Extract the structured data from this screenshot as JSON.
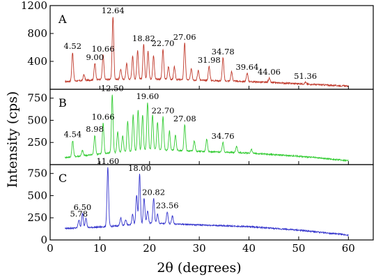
{
  "chart_data": {
    "type": "line",
    "xlabel": "2θ (degrees)",
    "ylabel": "Intensity (cps)",
    "x_range": [
      0,
      65
    ],
    "x_ticks": [
      0,
      10,
      20,
      30,
      40,
      50,
      60
    ],
    "grid": false,
    "panels": [
      {
        "id": "A",
        "letter": "A",
        "ylim": [
          0,
          1200
        ],
        "y_ticks": [
          400,
          800,
          1200
        ],
        "color": "#c0392b",
        "baseline": [
          [
            3,
            110
          ],
          [
            10,
            140
          ],
          [
            20,
            150
          ],
          [
            30,
            130
          ],
          [
            40,
            110
          ],
          [
            50,
            80
          ],
          [
            60,
            45
          ]
        ],
        "peaks": [
          {
            "x": 4.52,
            "y": 530,
            "label": "4.52"
          },
          {
            "x": 6.8,
            "y": 210
          },
          {
            "x": 9.0,
            "y": 370,
            "label": "9.00"
          },
          {
            "x": 10.66,
            "y": 490,
            "label": "10.66"
          },
          {
            "x": 12.64,
            "y": 1040,
            "label": "12.64"
          },
          {
            "x": 14.2,
            "y": 290
          },
          {
            "x": 15.4,
            "y": 370
          },
          {
            "x": 16.6,
            "y": 470
          },
          {
            "x": 17.6,
            "y": 560
          },
          {
            "x": 18.82,
            "y": 640,
            "label": "18.82"
          },
          {
            "x": 19.7,
            "y": 540
          },
          {
            "x": 20.8,
            "y": 480
          },
          {
            "x": 22.7,
            "y": 570,
            "label": "22.70"
          },
          {
            "x": 23.8,
            "y": 330
          },
          {
            "x": 25.0,
            "y": 320
          },
          {
            "x": 27.06,
            "y": 660,
            "label": "27.06"
          },
          {
            "x": 28.4,
            "y": 300
          },
          {
            "x": 29.8,
            "y": 270
          },
          {
            "x": 31.98,
            "y": 330,
            "label": "31.98"
          },
          {
            "x": 34.78,
            "y": 450,
            "label": "34.78"
          },
          {
            "x": 36.5,
            "y": 250
          },
          {
            "x": 39.64,
            "y": 230,
            "label": "39.64"
          },
          {
            "x": 44.06,
            "y": 160,
            "label": "44.06"
          },
          {
            "x": 51.36,
            "y": 100,
            "label": "51.36"
          }
        ]
      },
      {
        "id": "B",
        "letter": "B",
        "ylim": [
          0,
          850
        ],
        "y_ticks": [
          250,
          500,
          750
        ],
        "color": "#33cc33",
        "baseline": [
          [
            3,
            80
          ],
          [
            10,
            120
          ],
          [
            20,
            170
          ],
          [
            30,
            150
          ],
          [
            40,
            130
          ],
          [
            50,
            95
          ],
          [
            60,
            45
          ]
        ],
        "peaks": [
          {
            "x": 4.54,
            "y": 270,
            "label": "4.54"
          },
          {
            "x": 6.5,
            "y": 160
          },
          {
            "x": 8.98,
            "y": 330,
            "label": "8.98"
          },
          {
            "x": 10.66,
            "y": 470,
            "label": "10.66"
          },
          {
            "x": 12.5,
            "y": 790,
            "label": "12.50"
          },
          {
            "x": 13.6,
            "y": 370
          },
          {
            "x": 14.6,
            "y": 330
          },
          {
            "x": 15.6,
            "y": 490
          },
          {
            "x": 16.7,
            "y": 560
          },
          {
            "x": 17.7,
            "y": 610
          },
          {
            "x": 18.6,
            "y": 560
          },
          {
            "x": 19.6,
            "y": 700,
            "label": "19.60"
          },
          {
            "x": 20.6,
            "y": 560
          },
          {
            "x": 21.6,
            "y": 480
          },
          {
            "x": 22.7,
            "y": 540,
            "label": "22.70"
          },
          {
            "x": 24.0,
            "y": 380
          },
          {
            "x": 25.2,
            "y": 330
          },
          {
            "x": 27.08,
            "y": 450,
            "label": "27.08"
          },
          {
            "x": 29.0,
            "y": 270
          },
          {
            "x": 31.5,
            "y": 290
          },
          {
            "x": 34.76,
            "y": 250,
            "label": "34.76"
          },
          {
            "x": 37.5,
            "y": 210
          },
          {
            "x": 40.5,
            "y": 170
          }
        ]
      },
      {
        "id": "C",
        "letter": "C",
        "ylim": [
          0,
          850
        ],
        "y_ticks": [
          0,
          250,
          500,
          750
        ],
        "color": "#3333cc",
        "baseline": [
          [
            3,
            130
          ],
          [
            10,
            145
          ],
          [
            15,
            165
          ],
          [
            20,
            190
          ],
          [
            30,
            170
          ],
          [
            40,
            150
          ],
          [
            50,
            110
          ],
          [
            60,
            55
          ]
        ],
        "peaks": [
          {
            "x": 5.78,
            "y": 225,
            "label": "5.78"
          },
          {
            "x": 6.5,
            "y": 300,
            "label": "6.50"
          },
          {
            "x": 7.2,
            "y": 250
          },
          {
            "x": 11.6,
            "y": 820,
            "label": "11.60"
          },
          {
            "x": 14.2,
            "y": 250
          },
          {
            "x": 15.2,
            "y": 230
          },
          {
            "x": 16.6,
            "y": 290
          },
          {
            "x": 17.4,
            "y": 510
          },
          {
            "x": 18.0,
            "y": 740,
            "label": "18.00"
          },
          {
            "x": 18.9,
            "y": 470
          },
          {
            "x": 19.6,
            "y": 330
          },
          {
            "x": 20.82,
            "y": 470,
            "label": "20.82"
          },
          {
            "x": 21.6,
            "y": 290
          },
          {
            "x": 23.56,
            "y": 320,
            "label": "23.56"
          },
          {
            "x": 24.6,
            "y": 270
          }
        ]
      }
    ]
  }
}
